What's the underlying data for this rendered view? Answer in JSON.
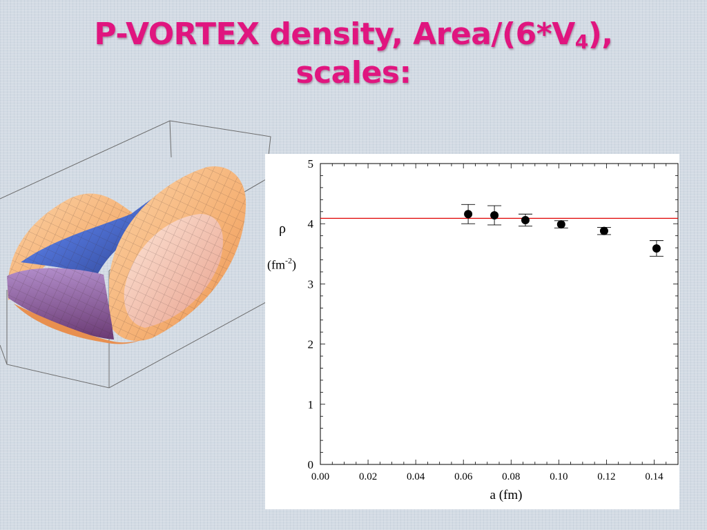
{
  "slide": {
    "title_line1_part1": "P-VORTEX density, Area/(6*V",
    "title_subscript": "4",
    "title_line1_part2": "),",
    "title_line2": "scales:"
  },
  "surface_plot": {
    "colors": {
      "orange": "#f5b073",
      "blue": "#3c5fc8",
      "purple": "#8a5c9c",
      "pink": "#e8a08c"
    }
  },
  "chart_data": {
    "type": "scatter",
    "xlabel": "a (fm)",
    "ylabel_symbol": "ρ",
    "ylabel_unit_prefix": "(fm",
    "ylabel_unit_exp": "-2",
    "ylabel_unit_suffix": ")",
    "xlim": [
      0.0,
      0.15
    ],
    "ylim": [
      0,
      5
    ],
    "xticks": [
      0.0,
      0.02,
      0.04,
      0.06,
      0.08,
      0.1,
      0.12,
      0.14
    ],
    "xtick_labels": [
      "0.00",
      "0.02",
      "0.04",
      "0.06",
      "0.08",
      "0.10",
      "0.12",
      "0.14"
    ],
    "yticks": [
      0,
      1,
      2,
      3,
      4,
      5
    ],
    "ytick_labels": [
      "0",
      "1",
      "2",
      "3",
      "4",
      "5"
    ],
    "points": [
      {
        "x": 0.062,
        "y": 4.16,
        "err": 0.16
      },
      {
        "x": 0.073,
        "y": 4.14,
        "err": 0.16
      },
      {
        "x": 0.086,
        "y": 4.06,
        "err": 0.1
      },
      {
        "x": 0.101,
        "y": 3.99,
        "err": 0.06
      },
      {
        "x": 0.119,
        "y": 3.88,
        "err": 0.06
      },
      {
        "x": 0.141,
        "y": 3.59,
        "err": 0.13
      }
    ],
    "reference_line": {
      "y": 4.09,
      "color": "#e00000"
    },
    "grid": false,
    "marker_color": "#000000"
  }
}
